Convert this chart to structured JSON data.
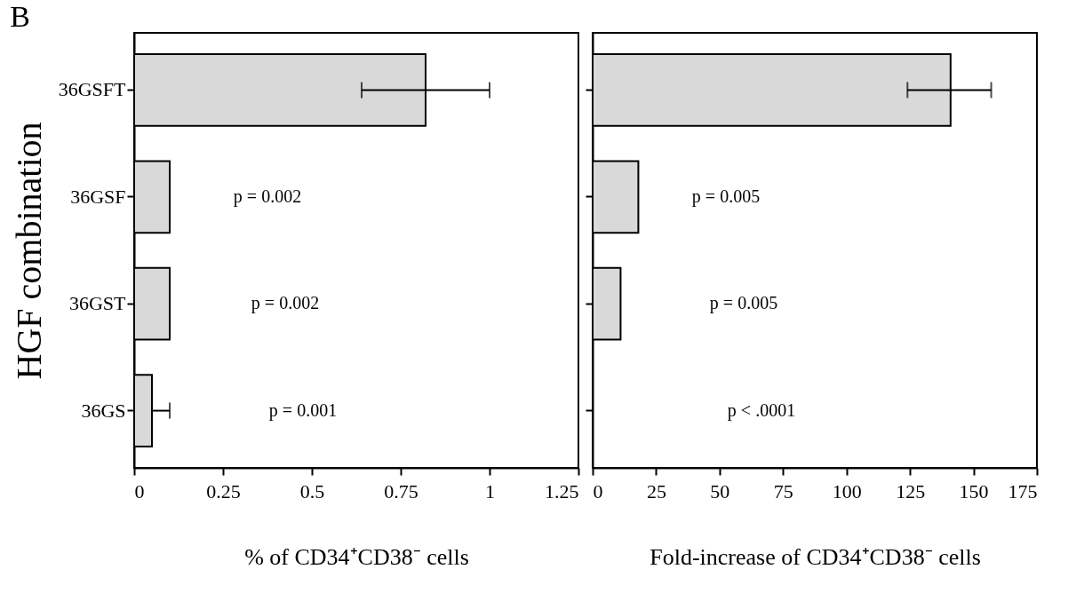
{
  "chart_data": [
    {
      "type": "bar",
      "orientation": "horizontal",
      "title": "B",
      "ylabel": "HGF combination",
      "xlabel": "% of CD34⁺CD38⁻ cells",
      "categories": [
        "36GSFT",
        "36GSF",
        "36GST",
        "36GS"
      ],
      "values": [
        0.82,
        0.1,
        0.1,
        0.05
      ],
      "color": "#d9d9d9",
      "errors": [
        [
          0.64,
          1.0
        ],
        null,
        null,
        [
          0.05,
          0.1
        ]
      ],
      "xlim": [
        0,
        1.25
      ],
      "xticks": [
        0,
        0.25,
        0.5,
        0.75,
        1,
        1.25
      ],
      "grid": false,
      "annotations": [
        "p = 0.002",
        "p = 0.002",
        "p = 0.001"
      ]
    },
    {
      "type": "bar",
      "orientation": "horizontal",
      "xlabel": "Fold-increase of CD34⁺CD38⁻ cells",
      "categories": [
        "36GSFT",
        "36GSF",
        "36GST",
        "36GS"
      ],
      "values": [
        141,
        18,
        11,
        null
      ],
      "color": "#d9d9d9",
      "errors": [
        [
          124,
          157
        ],
        null,
        null,
        null
      ],
      "xlim": [
        0,
        175
      ],
      "xticks": [
        0,
        25,
        50,
        75,
        100,
        125,
        150,
        175
      ],
      "grid": false,
      "tick_labels": "x",
      "annotations": [
        "p = 0.005",
        "p = 0.005",
        "p < .0001"
      ]
    }
  ]
}
